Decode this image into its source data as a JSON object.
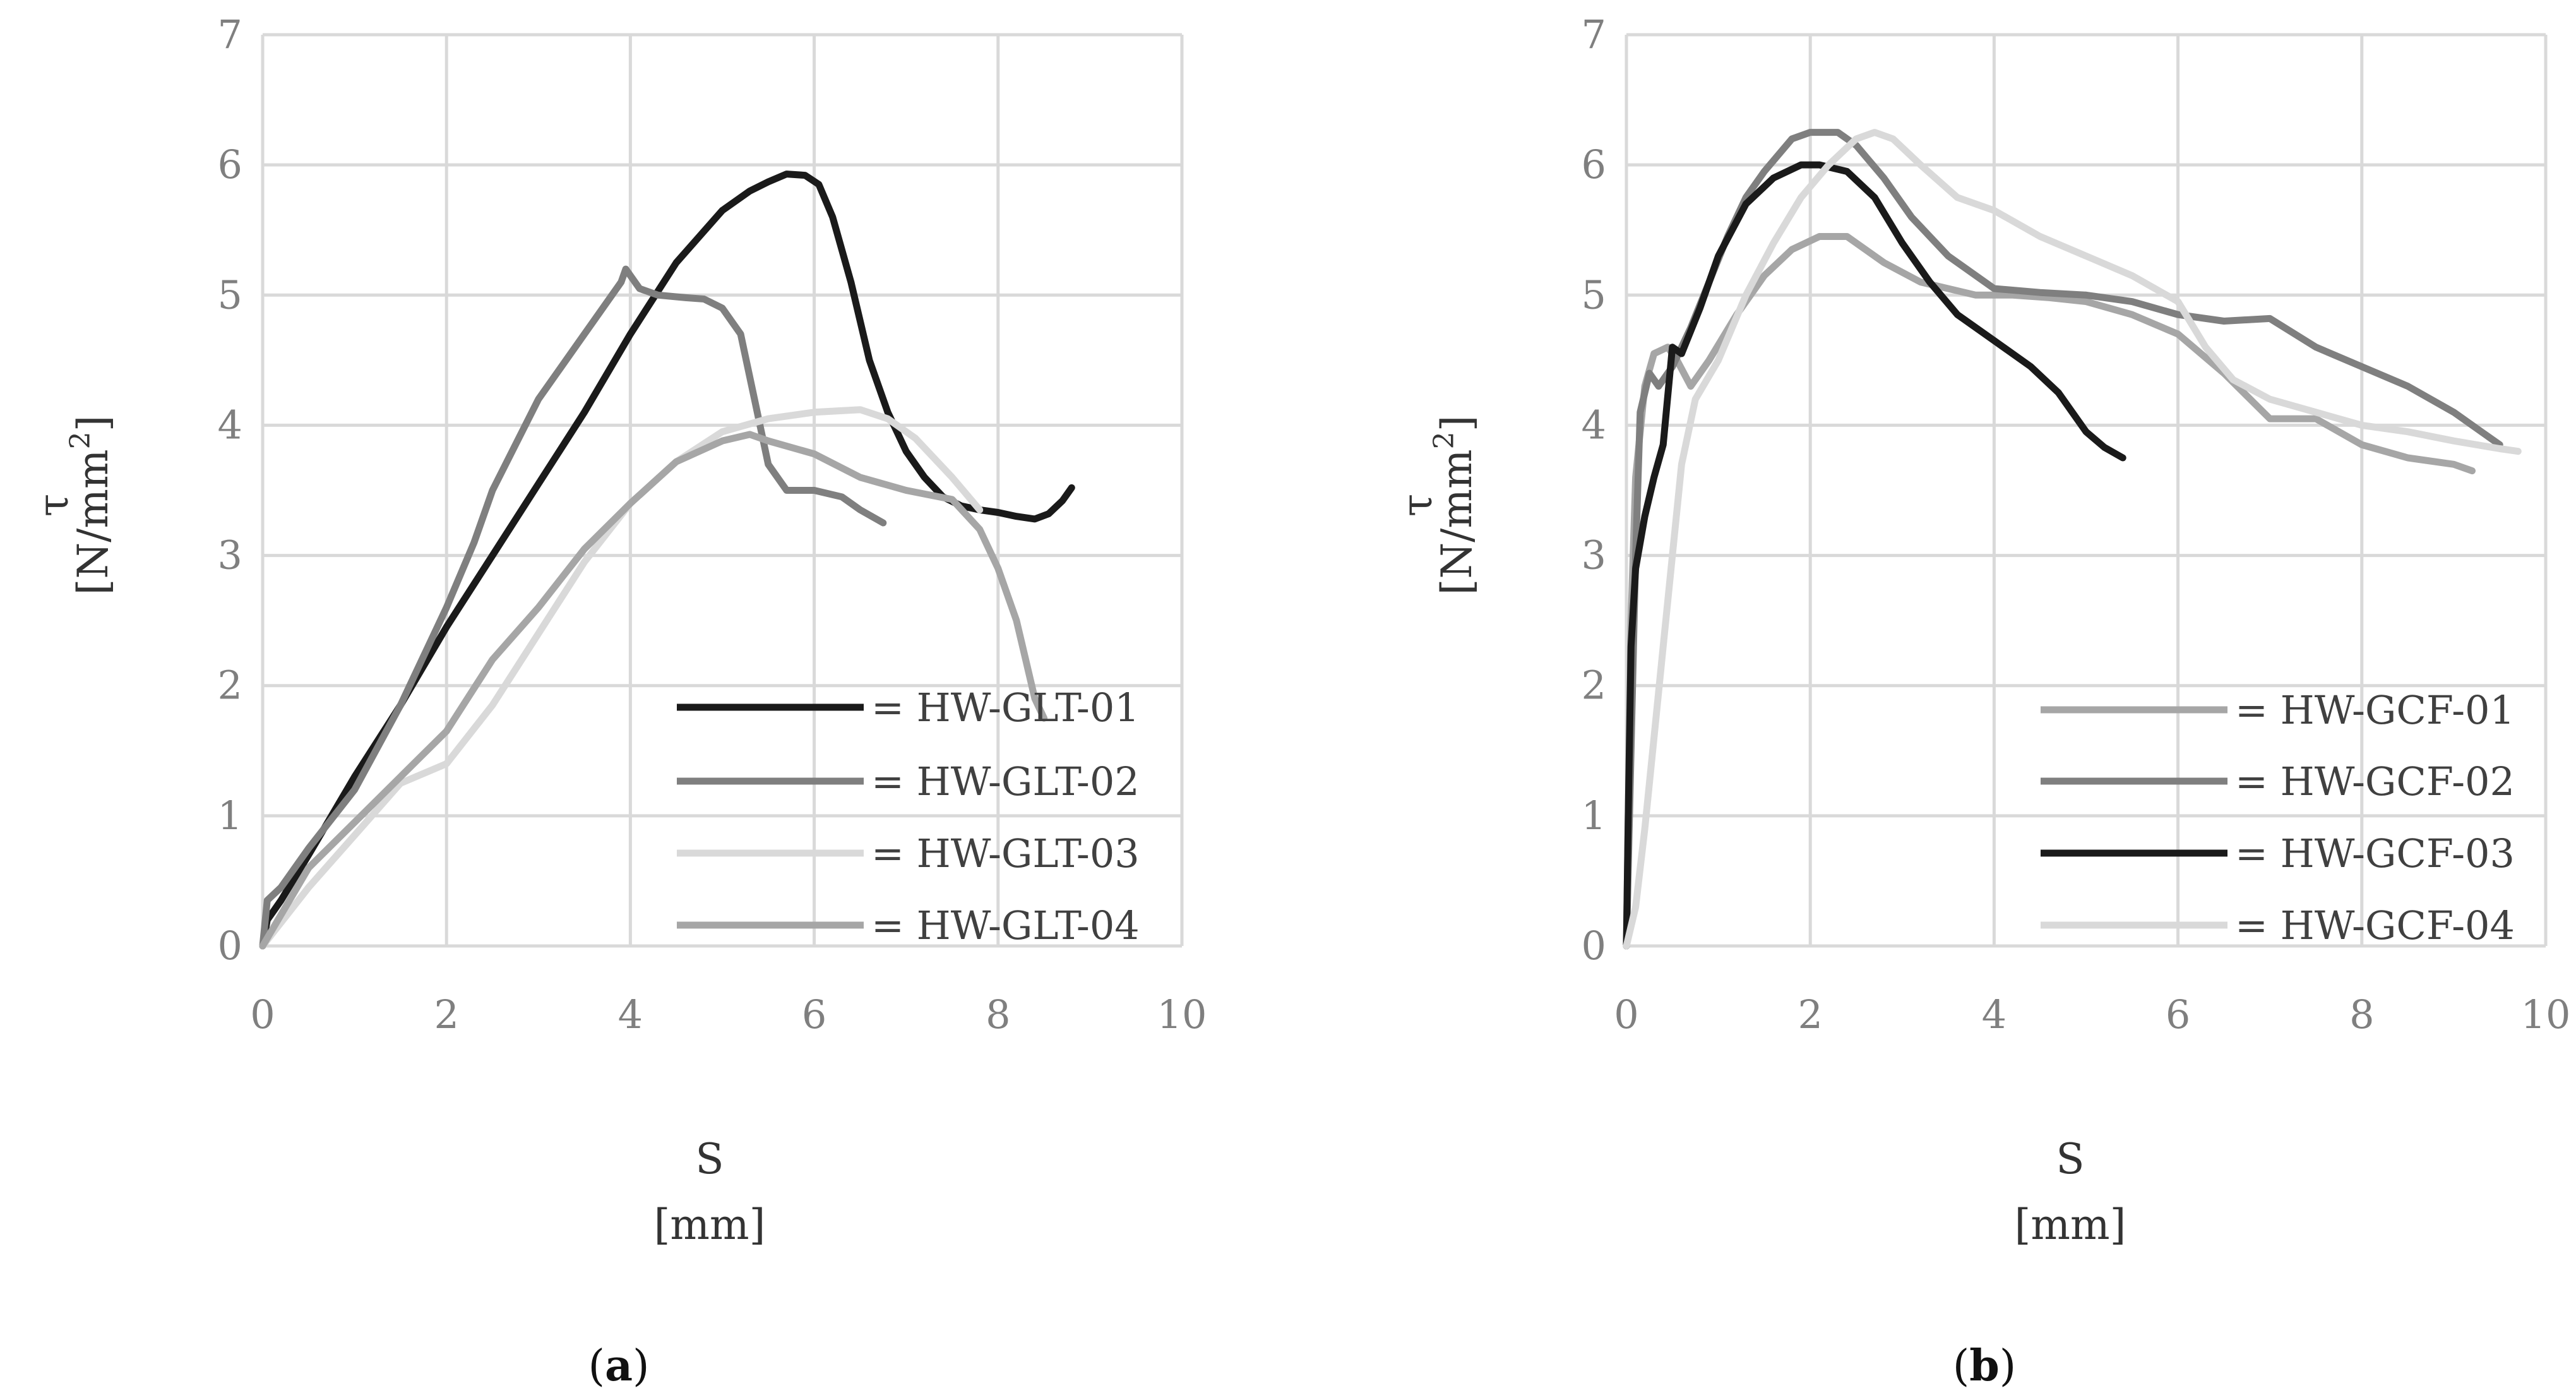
{
  "chart_data": [
    {
      "type": "line",
      "panel": "a",
      "xlabel_name": "S",
      "xlabel_unit": "[mm]",
      "ylabel_name": "τ",
      "ylabel_unit": "[N/mm",
      "ylabel_sup": "2",
      "ylabel_close": "]",
      "xlim": [
        0,
        10
      ],
      "ylim": [
        0,
        7
      ],
      "xticks": [
        0,
        2,
        4,
        6,
        8,
        10
      ],
      "yticks": [
        0,
        1,
        2,
        3,
        4,
        5,
        6,
        7
      ],
      "grid": true,
      "legend_position": "bottom-right",
      "series": [
        {
          "name": "HW-GLT-01",
          "legend_label": "= HW-GLT-01",
          "color": "#1a1a1a",
          "x": [
            0,
            0.05,
            0.1,
            0.2,
            0.5,
            1.0,
            1.5,
            2.0,
            2.5,
            3.0,
            3.5,
            4.0,
            4.5,
            5.0,
            5.3,
            5.5,
            5.7,
            5.9,
            6.05,
            6.2,
            6.4,
            6.6,
            6.8,
            7.0,
            7.2,
            7.4,
            7.6,
            7.8,
            8.0,
            8.2,
            8.4,
            8.55,
            8.7,
            8.8
          ],
          "y": [
            0,
            0.2,
            0.25,
            0.35,
            0.7,
            1.3,
            1.85,
            2.45,
            3.0,
            3.55,
            4.1,
            4.7,
            5.25,
            5.65,
            5.8,
            5.87,
            5.93,
            5.92,
            5.85,
            5.6,
            5.1,
            4.5,
            4.1,
            3.8,
            3.6,
            3.45,
            3.38,
            3.35,
            3.33,
            3.3,
            3.28,
            3.32,
            3.42,
            3.52
          ]
        },
        {
          "name": "HW-GLT-02",
          "legend_label": "= HW-GLT-02",
          "color": "#7f7f7f",
          "x": [
            0,
            0.05,
            0.2,
            0.5,
            1.0,
            1.5,
            2.0,
            2.3,
            2.5,
            3.0,
            3.5,
            3.9,
            3.95,
            4.1,
            4.3,
            4.6,
            4.8,
            5.0,
            5.2,
            5.35,
            5.5,
            5.7,
            6.0,
            6.3,
            6.5,
            6.75
          ],
          "y": [
            0,
            0.35,
            0.45,
            0.75,
            1.2,
            1.85,
            2.6,
            3.1,
            3.5,
            4.2,
            4.7,
            5.1,
            5.2,
            5.05,
            5.0,
            4.98,
            4.97,
            4.9,
            4.7,
            4.2,
            3.7,
            3.5,
            3.5,
            3.45,
            3.35,
            3.25
          ]
        },
        {
          "name": "HW-GLT-03",
          "legend_label": "= HW-GLT-03",
          "color": "#d9d9d9",
          "x": [
            0,
            0.5,
            1.0,
            1.5,
            2.0,
            2.5,
            3.0,
            3.5,
            4.0,
            4.5,
            5.0,
            5.5,
            6.0,
            6.5,
            6.8,
            7.1,
            7.5,
            7.8
          ],
          "y": [
            0,
            0.45,
            0.85,
            1.25,
            1.4,
            1.85,
            2.4,
            2.95,
            3.4,
            3.72,
            3.95,
            4.05,
            4.1,
            4.12,
            4.05,
            3.9,
            3.6,
            3.35
          ]
        },
        {
          "name": "HW-GLT-04",
          "legend_label": "= HW-GLT-04",
          "color": "#a6a6a6",
          "x": [
            0,
            0.5,
            1.0,
            1.5,
            2.0,
            2.5,
            3.0,
            3.5,
            4.0,
            4.5,
            5.0,
            5.3,
            5.5,
            6.0,
            6.5,
            7.0,
            7.5,
            7.8,
            8.0,
            8.2,
            8.3,
            8.4,
            8.5
          ],
          "y": [
            0,
            0.6,
            0.95,
            1.3,
            1.65,
            2.2,
            2.6,
            3.05,
            3.4,
            3.72,
            3.88,
            3.93,
            3.88,
            3.78,
            3.6,
            3.5,
            3.43,
            3.2,
            2.9,
            2.5,
            2.2,
            1.9,
            1.75
          ]
        }
      ]
    },
    {
      "type": "line",
      "panel": "b",
      "xlabel_name": "S",
      "xlabel_unit": "[mm]",
      "ylabel_name": "τ",
      "ylabel_unit": "[N/mm",
      "ylabel_sup": "2",
      "ylabel_close": "]",
      "xlim": [
        0,
        10
      ],
      "ylim": [
        0,
        7
      ],
      "xticks": [
        0,
        2,
        4,
        6,
        8,
        10
      ],
      "yticks": [
        0,
        1,
        2,
        3,
        4,
        5,
        6,
        7
      ],
      "grid": true,
      "legend_position": "bottom-right",
      "series": [
        {
          "name": "HW-GCF-01",
          "legend_label": "= HW-GCF-01",
          "color": "#a6a6a6",
          "x": [
            0,
            0.05,
            0.1,
            0.2,
            0.3,
            0.45,
            0.55,
            0.7,
            0.9,
            1.2,
            1.5,
            1.8,
            2.1,
            2.4,
            2.8,
            3.2,
            3.8,
            4.2,
            4.6,
            5.0,
            5.5,
            6.0,
            6.5,
            7.0,
            7.5,
            8.0,
            8.5,
            9.0,
            9.2
          ],
          "y": [
            0,
            2.5,
            3.6,
            4.3,
            4.55,
            4.6,
            4.5,
            4.3,
            4.5,
            4.85,
            5.15,
            5.35,
            5.45,
            5.45,
            5.25,
            5.1,
            5.0,
            5.0,
            4.98,
            4.95,
            4.85,
            4.7,
            4.4,
            4.05,
            4.05,
            3.85,
            3.75,
            3.7,
            3.65
          ]
        },
        {
          "name": "HW-GCF-02",
          "legend_label": "= HW-GCF-02",
          "color": "#7f7f7f",
          "x": [
            0,
            0.05,
            0.1,
            0.15,
            0.25,
            0.35,
            0.5,
            0.7,
            0.9,
            1.1,
            1.3,
            1.5,
            1.8,
            2.0,
            2.3,
            2.5,
            2.8,
            3.1,
            3.5,
            4.0,
            4.5,
            5.0,
            5.5,
            6.0,
            6.5,
            7.0,
            7.5,
            8.0,
            8.5,
            9.0,
            9.5
          ],
          "y": [
            0,
            1.5,
            3.0,
            4.1,
            4.4,
            4.3,
            4.45,
            4.75,
            5.1,
            5.45,
            5.75,
            5.95,
            6.2,
            6.25,
            6.25,
            6.15,
            5.9,
            5.6,
            5.3,
            5.05,
            5.02,
            5.0,
            4.95,
            4.85,
            4.8,
            4.82,
            4.6,
            4.45,
            4.3,
            4.1,
            3.85
          ]
        },
        {
          "name": "HW-GCF-03",
          "legend_label": "= HW-GCF-03",
          "color": "#1a1a1a",
          "x": [
            0,
            0.02,
            0.05,
            0.1,
            0.2,
            0.3,
            0.4,
            0.5,
            0.6,
            0.8,
            1.0,
            1.3,
            1.6,
            1.9,
            2.1,
            2.4,
            2.7,
            3.0,
            3.3,
            3.6,
            4.0,
            4.4,
            4.7,
            5.0,
            5.2,
            5.4
          ],
          "y": [
            0,
            1.0,
            2.3,
            2.9,
            3.3,
            3.6,
            3.85,
            4.6,
            4.55,
            4.9,
            5.3,
            5.7,
            5.9,
            6.0,
            6.0,
            5.95,
            5.75,
            5.4,
            5.1,
            4.85,
            4.65,
            4.45,
            4.25,
            3.95,
            3.83,
            3.75
          ]
        },
        {
          "name": "HW-GCF-04",
          "legend_label": "= HW-GCF-04",
          "color": "#d9d9d9",
          "x": [
            0,
            0.1,
            0.2,
            0.3,
            0.4,
            0.5,
            0.6,
            0.75,
            1.0,
            1.3,
            1.6,
            1.9,
            2.2,
            2.5,
            2.7,
            2.9,
            3.2,
            3.6,
            4.0,
            4.5,
            5.0,
            5.5,
            6.0,
            6.3,
            6.6,
            7.0,
            7.5,
            8.0,
            8.5,
            9.0,
            9.5,
            9.7
          ],
          "y": [
            0,
            0.3,
            0.9,
            1.6,
            2.3,
            3.0,
            3.7,
            4.2,
            4.5,
            5.0,
            5.4,
            5.75,
            6.0,
            6.2,
            6.25,
            6.2,
            6.0,
            5.75,
            5.65,
            5.45,
            5.3,
            5.15,
            4.95,
            4.6,
            4.35,
            4.2,
            4.1,
            4.0,
            3.95,
            3.88,
            3.82,
            3.8
          ]
        }
      ]
    }
  ],
  "panels": [
    {
      "label_open": "(",
      "label": "a",
      "label_close": ")"
    },
    {
      "label_open": "(",
      "label": "b",
      "label_close": ")"
    }
  ]
}
